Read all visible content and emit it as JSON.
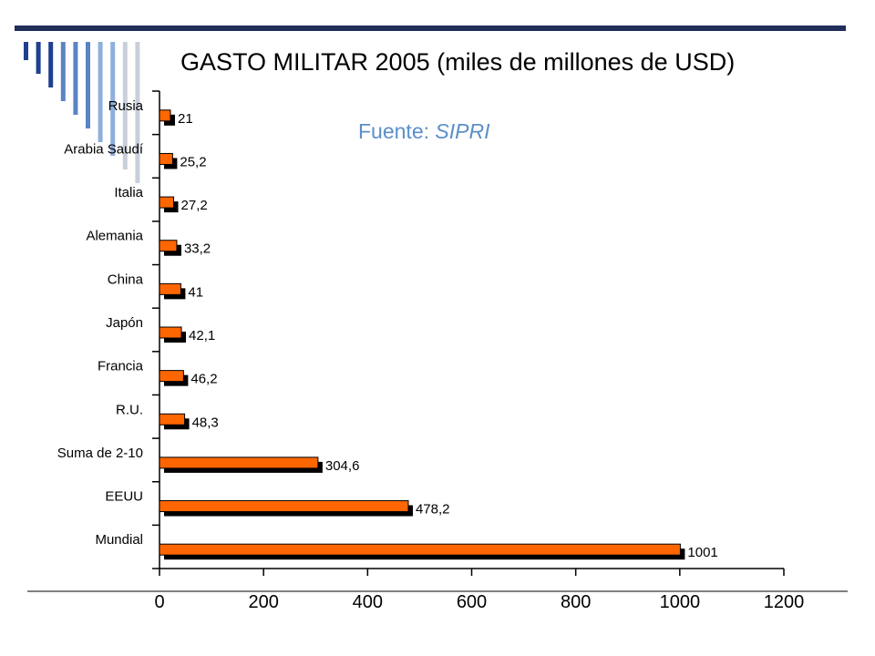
{
  "slide": {
    "title": "GASTO MILITAR 2005 (miles de millones de USD)",
    "source_prefix": "Fuente: ",
    "source_name": "SIPRI",
    "source_color": "#5b8fc9",
    "decoration_colors": [
      "#1f3f8f",
      "#5a84c4",
      "#8fb0dc",
      "#c9cfd9"
    ]
  },
  "chart_data": {
    "type": "bar",
    "orientation": "horizontal",
    "title": "GASTO MILITAR 2005 (miles de millones de USD)",
    "categories": [
      "Rusia",
      "Arabia Saudí",
      "Italia",
      "Alemania",
      "China",
      "Japón",
      "Francia",
      "R.U.",
      "Suma de 2-10",
      "EEUU",
      "Mundial"
    ],
    "values": [
      21,
      25.2,
      27.2,
      33.2,
      41,
      42.1,
      46.2,
      48.3,
      304.6,
      478.2,
      1001
    ],
    "value_labels": [
      "21",
      "25,2",
      "27,2",
      "33,2",
      "41",
      "42,1",
      "46,2",
      "48,3",
      "304,6",
      "478,2",
      "1001"
    ],
    "x_ticks": [
      "0",
      "200",
      "400",
      "600",
      "800",
      "1000",
      "1200"
    ],
    "xlim": [
      0,
      1200
    ],
    "bar_color": "#ff6600",
    "shadow_color": "#000000",
    "grid": false,
    "legend": "none"
  }
}
